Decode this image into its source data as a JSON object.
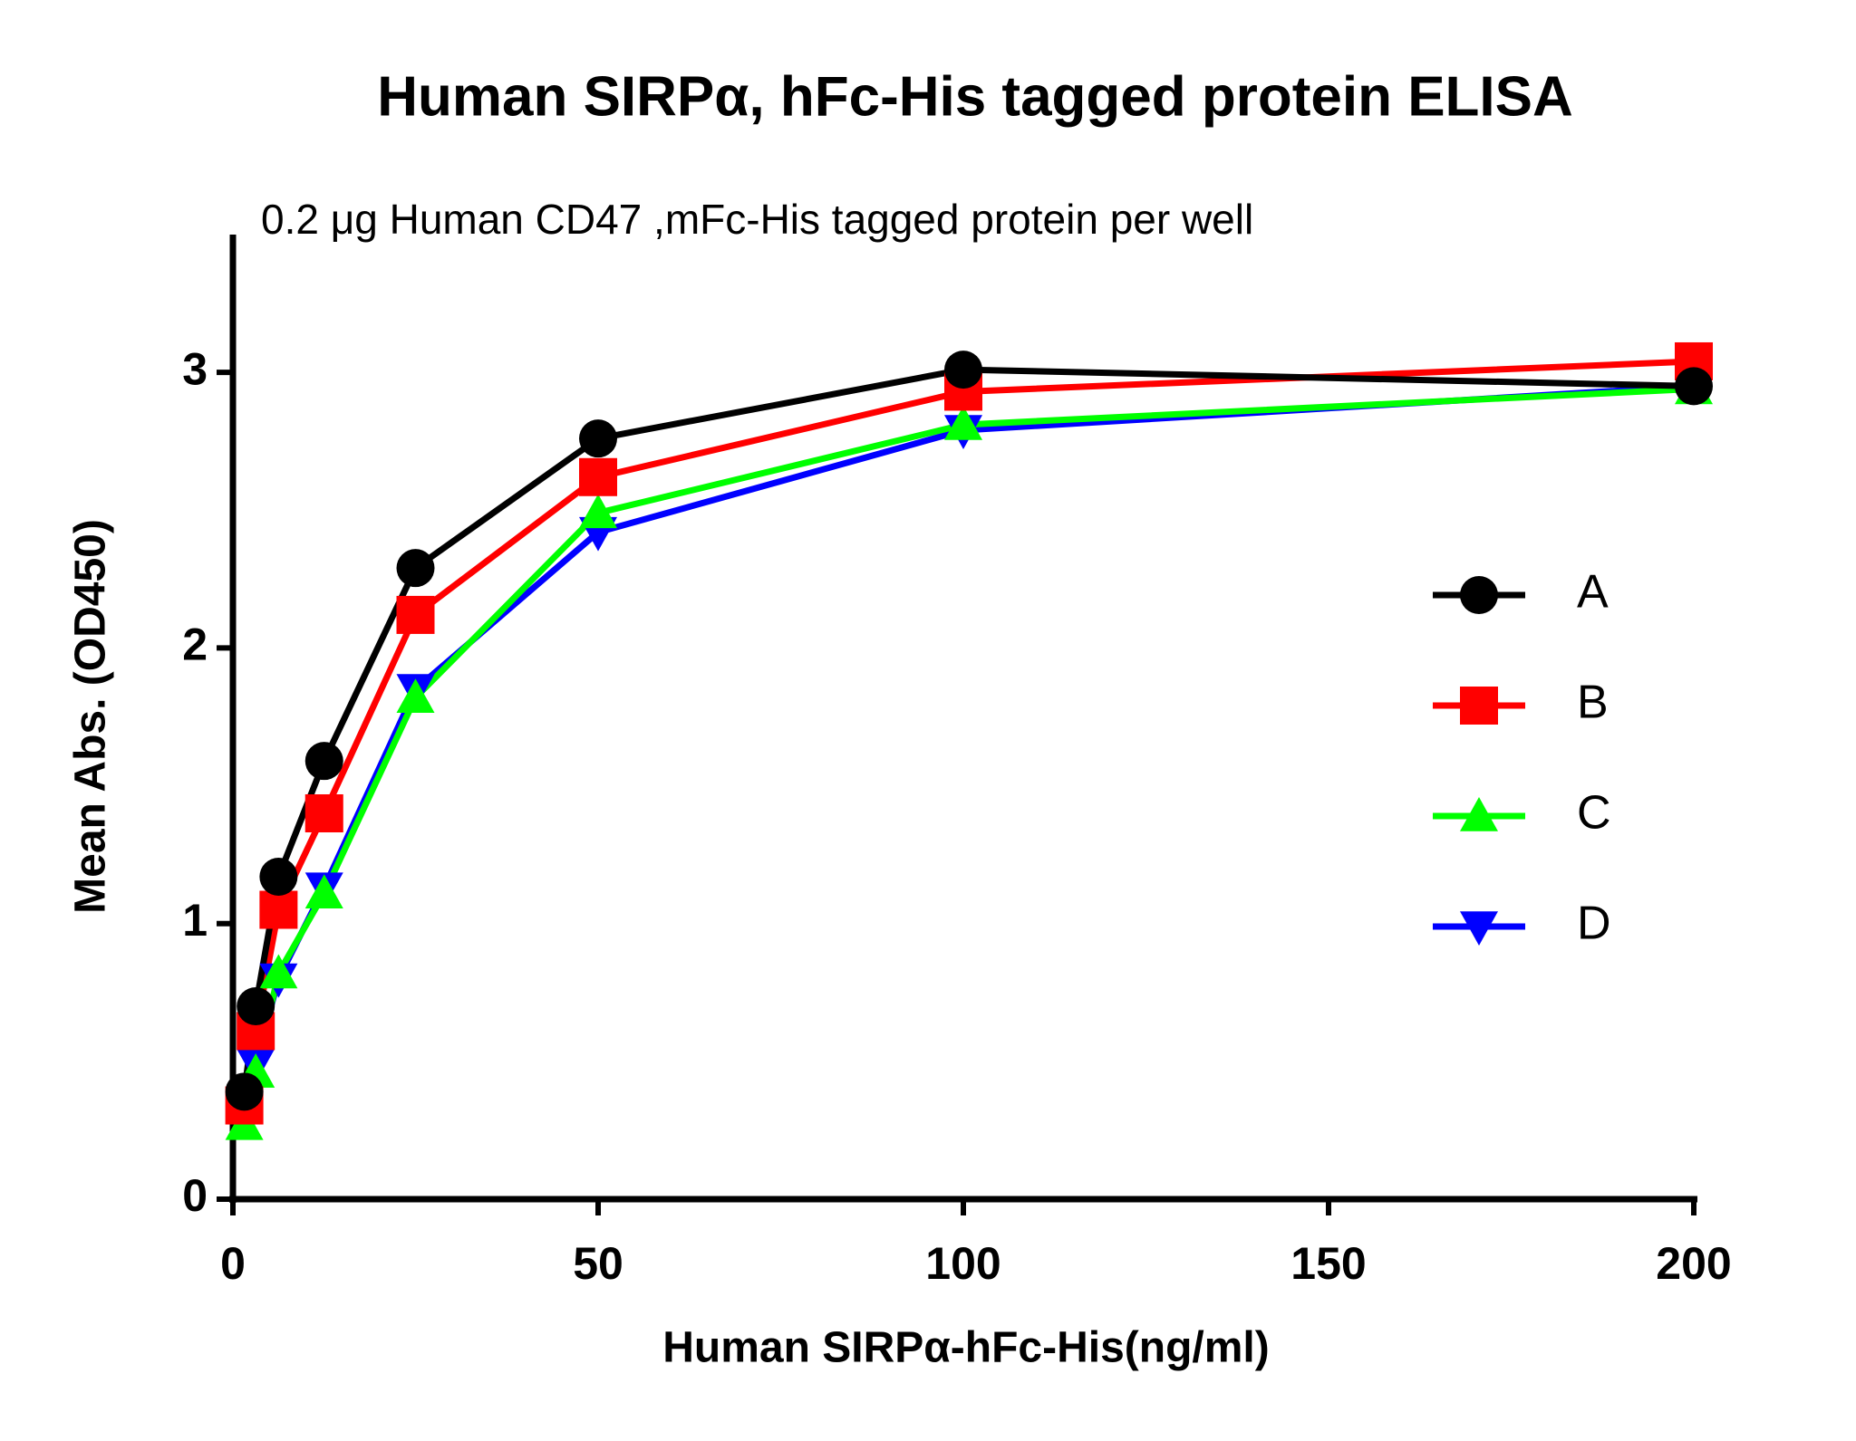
{
  "chart_data": {
    "type": "line",
    "title": "Human SIRPα, hFc-His tagged protein ELISA",
    "subtitle": "0.2 μg Human CD47 ,mFc-His tagged protein per well",
    "x_label": "Human SIRPα-hFc-His(ng/ml)",
    "y_label": "Mean Abs. (OD450)",
    "x": [
      1.5625,
      3.125,
      6.25,
      12.5,
      25,
      50,
      100,
      200
    ],
    "series": [
      {
        "name": "A",
        "color": "#000000",
        "marker": "circle",
        "values": [
          0.39,
          0.7,
          1.17,
          1.59,
          2.29,
          2.76,
          3.01,
          2.95
        ]
      },
      {
        "name": "B",
        "color": "#ff0000",
        "marker": "square",
        "values": [
          0.34,
          0.61,
          1.05,
          1.4,
          2.12,
          2.62,
          2.93,
          3.04
        ]
      },
      {
        "name": "C",
        "color": "#00ff00",
        "marker": "triangle-up",
        "values": [
          0.27,
          0.46,
          0.82,
          1.11,
          1.82,
          2.49,
          2.81,
          2.94
        ]
      },
      {
        "name": "D",
        "color": "#0000ff",
        "marker": "triangle-down",
        "values": [
          0.31,
          0.49,
          0.8,
          1.13,
          1.85,
          2.42,
          2.79,
          2.95
        ]
      }
    ],
    "xlim": [
      0,
      200
    ],
    "xticks": [
      0,
      50,
      100,
      150,
      200
    ],
    "ylim": [
      0,
      3.5
    ],
    "yticks": [
      0,
      1,
      2,
      3
    ],
    "grid": false,
    "legend": "right"
  }
}
